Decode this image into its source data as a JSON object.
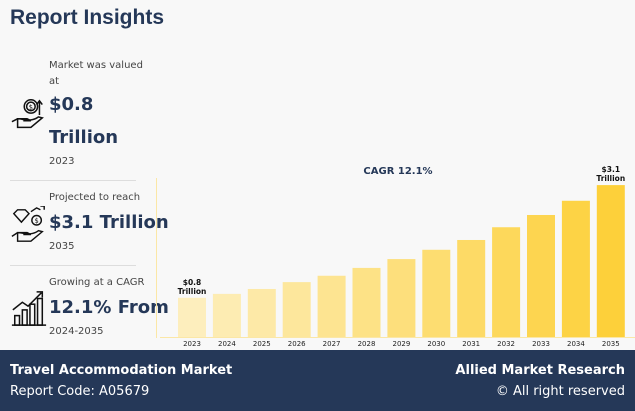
{
  "title": "Report Insights",
  "stats": [
    {
      "icon": "money-hand-icon",
      "label1": "Market was valued",
      "label2": "at",
      "value1": "$0.8",
      "value2": "Trillion",
      "year": "2023"
    },
    {
      "icon": "diamond-hand-icon",
      "label1": "Projected to reach",
      "value1": "$3.1 Trillion",
      "year": "2035"
    },
    {
      "icon": "growth-chart-icon",
      "label1": "Growing at a CAGR",
      "value1": "12.1% From",
      "year": "2024-2035"
    }
  ],
  "chart_data": {
    "type": "bar",
    "title": "CAGR 12.1%",
    "categories": [
      "2023",
      "2024",
      "2025",
      "2026",
      "2027",
      "2028",
      "2029",
      "2030",
      "2031",
      "2032",
      "2033",
      "2034",
      "2035"
    ],
    "values": [
      0.8,
      0.88,
      0.98,
      1.12,
      1.25,
      1.41,
      1.59,
      1.78,
      1.98,
      2.24,
      2.49,
      2.78,
      3.1
    ],
    "annotations": [
      {
        "category": "2023",
        "line1": "$0.8",
        "line2": "Trillion"
      },
      {
        "category": "2035",
        "line1": "$3.1",
        "line2": "Trillion"
      }
    ],
    "colors": {
      "start": "#fdeebd",
      "end": "#fdd03a",
      "axis": "#fbe7a6"
    },
    "grid": false
  },
  "footer": {
    "market": "Travel Accommodation Market",
    "code": "Report Code: A05679",
    "brand": "Allied Market Research",
    "rights": "© All right reserved"
  }
}
